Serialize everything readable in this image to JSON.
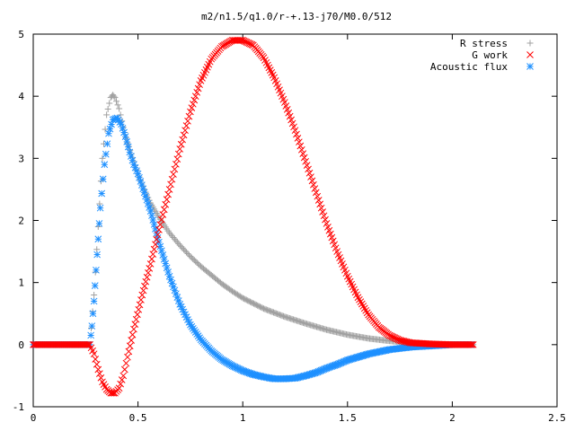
{
  "chart_data": {
    "type": "scatter",
    "title": "m2/n1.5/q1.0/r-+.13-j70/M0.0/512",
    "xlabel": "",
    "ylabel": "",
    "xlim": [
      0,
      2.5
    ],
    "ylim": [
      -1,
      5
    ],
    "xticks": [
      "0",
      "0.5",
      "1",
      "1.5",
      "2",
      "2.5"
    ],
    "yticks": [
      "-1",
      "0",
      "1",
      "2",
      "3",
      "4",
      "5"
    ],
    "grid": false,
    "legend_position": "top-right",
    "series": [
      {
        "name": "R stress",
        "marker": "plus",
        "color": "#a0a0a0",
        "x": [
          0.0,
          0.27,
          0.29,
          0.31,
          0.33,
          0.35,
          0.37,
          0.38,
          0.39,
          0.41,
          0.43,
          0.45,
          0.48,
          0.5,
          0.53,
          0.56,
          0.6,
          0.65,
          0.7,
          0.75,
          0.8,
          0.85,
          0.9,
          0.95,
          1.0,
          1.1,
          1.2,
          1.3,
          1.4,
          1.5,
          1.6,
          1.7,
          1.8,
          1.9,
          2.0,
          2.1
        ],
        "y": [
          0.0,
          0.0,
          0.8,
          1.9,
          3.0,
          3.7,
          3.98,
          4.02,
          3.98,
          3.8,
          3.5,
          3.25,
          2.95,
          2.75,
          2.5,
          2.28,
          2.05,
          1.8,
          1.6,
          1.42,
          1.26,
          1.12,
          0.98,
          0.86,
          0.75,
          0.58,
          0.45,
          0.34,
          0.24,
          0.16,
          0.1,
          0.06,
          0.03,
          0.01,
          0.0,
          0.0
        ]
      },
      {
        "name": "G work",
        "marker": "cross",
        "color": "#ff0000",
        "x": [
          0.0,
          0.27,
          0.29,
          0.31,
          0.33,
          0.35,
          0.37,
          0.39,
          0.41,
          0.43,
          0.45,
          0.48,
          0.52,
          0.56,
          0.6,
          0.65,
          0.7,
          0.75,
          0.8,
          0.85,
          0.9,
          0.95,
          1.0,
          1.05,
          1.1,
          1.15,
          1.2,
          1.25,
          1.3,
          1.35,
          1.4,
          1.45,
          1.5,
          1.55,
          1.6,
          1.65,
          1.7,
          1.75,
          1.8,
          1.9,
          2.0,
          2.1
        ],
        "y": [
          0.0,
          0.0,
          -0.15,
          -0.4,
          -0.6,
          -0.72,
          -0.78,
          -0.78,
          -0.7,
          -0.5,
          -0.2,
          0.25,
          0.8,
          1.3,
          1.85,
          2.5,
          3.15,
          3.75,
          4.25,
          4.6,
          4.8,
          4.9,
          4.9,
          4.82,
          4.62,
          4.3,
          3.9,
          3.45,
          2.95,
          2.45,
          1.95,
          1.5,
          1.1,
          0.76,
          0.48,
          0.28,
          0.15,
          0.07,
          0.03,
          0.01,
          0.0,
          0.0
        ]
      },
      {
        "name": "Acoustic flux",
        "marker": "star",
        "color": "#1e90ff",
        "x": [
          0.0,
          0.27,
          0.28,
          0.29,
          0.3,
          0.31,
          0.32,
          0.34,
          0.36,
          0.38,
          0.4,
          0.42,
          0.44,
          0.46,
          0.48,
          0.5,
          0.53,
          0.56,
          0.6,
          0.65,
          0.7,
          0.75,
          0.8,
          0.85,
          0.9,
          0.95,
          1.0,
          1.05,
          1.1,
          1.15,
          1.2,
          1.25,
          1.3,
          1.35,
          1.4,
          1.45,
          1.5,
          1.6,
          1.7,
          1.8,
          1.9,
          2.0,
          2.09
        ],
        "y": [
          0.0,
          0.0,
          0.3,
          0.7,
          1.2,
          1.7,
          2.2,
          2.9,
          3.4,
          3.62,
          3.65,
          3.55,
          3.35,
          3.1,
          2.9,
          2.75,
          2.45,
          2.15,
          1.65,
          1.1,
          0.65,
          0.32,
          0.08,
          -0.1,
          -0.24,
          -0.34,
          -0.42,
          -0.48,
          -0.52,
          -0.55,
          -0.55,
          -0.54,
          -0.5,
          -0.45,
          -0.38,
          -0.32,
          -0.25,
          -0.15,
          -0.08,
          -0.04,
          -0.02,
          0.0,
          0.0
        ]
      }
    ]
  }
}
